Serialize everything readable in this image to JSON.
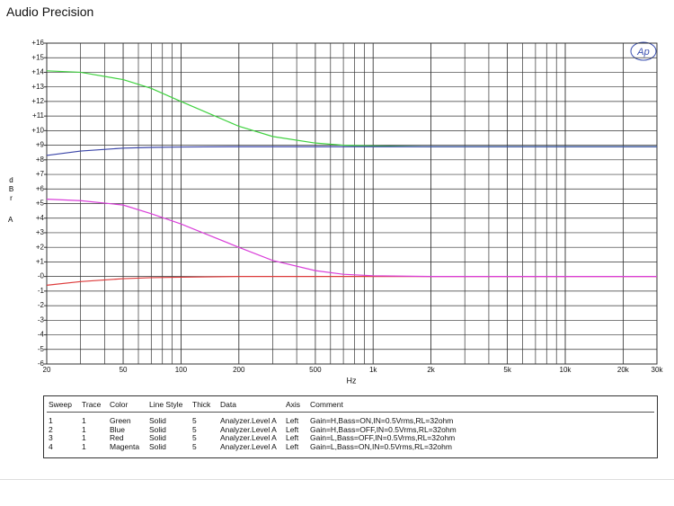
{
  "title": "Audio Precision",
  "logo": "Ap",
  "chart_data": {
    "type": "line",
    "xlabel": "Hz",
    "ylabel": "dBr",
    "ylabel2": "A",
    "log_x": true,
    "grid": true,
    "x": [
      20,
      30,
      50,
      70,
      100,
      200,
      300,
      500,
      700,
      1000,
      2000,
      5000,
      10000,
      20000,
      30000
    ],
    "series": [
      {
        "color": "#3fd13f",
        "values": [
          14.1,
          14.0,
          13.5,
          12.9,
          12.0,
          10.3,
          9.6,
          9.15,
          9.0,
          8.95,
          8.9,
          8.9,
          8.9,
          8.9,
          8.9
        ]
      },
      {
        "color": "#3a45a8",
        "values": [
          8.3,
          8.6,
          8.8,
          8.85,
          8.88,
          8.9,
          8.9,
          8.9,
          8.9,
          8.9,
          8.9,
          8.9,
          8.9,
          8.9,
          8.9
        ]
      },
      {
        "color": "#dd3b3b",
        "values": [
          -0.6,
          -0.35,
          -0.15,
          -0.08,
          -0.05,
          0,
          0,
          0,
          0,
          0,
          0,
          0,
          0,
          0,
          0
        ]
      },
      {
        "color": "#d93fd9",
        "values": [
          5.3,
          5.2,
          4.9,
          4.3,
          3.6,
          2.0,
          1.1,
          0.4,
          0.15,
          0.05,
          0,
          0,
          0,
          0,
          0
        ]
      }
    ],
    "xlim": [
      20,
      30000
    ],
    "ylim": [
      -6,
      16
    ],
    "xticks": [
      20,
      50,
      100,
      200,
      500,
      {
        "value": 1000,
        "label": "1k"
      },
      {
        "value": 2000,
        "label": "2k"
      },
      {
        "value": 5000,
        "label": "5k"
      },
      {
        "value": 10000,
        "label": "10k"
      },
      {
        "value": 20000,
        "label": "20k"
      },
      {
        "value": 30000,
        "label": "30k"
      }
    ],
    "yticks": [
      {
        "value": 16,
        "label": "+16"
      },
      {
        "value": 15,
        "label": "+15"
      },
      {
        "value": 14,
        "label": "+14"
      },
      {
        "value": 13,
        "label": "+13"
      },
      {
        "value": 12,
        "label": "+12"
      },
      {
        "value": 11,
        "label": "+11"
      },
      {
        "value": 10,
        "label": "+10"
      },
      {
        "value": 9,
        "label": "+9"
      },
      {
        "value": 8,
        "label": "+8"
      },
      {
        "value": 7,
        "label": "+7"
      },
      {
        "value": 6,
        "label": "+6"
      },
      {
        "value": 5,
        "label": "+5"
      },
      {
        "value": 4,
        "label": "+4"
      },
      {
        "value": 3,
        "label": "+3"
      },
      {
        "value": 2,
        "label": "+2"
      },
      {
        "value": 1,
        "label": "+1"
      },
      {
        "value": 0,
        "label": "-0"
      },
      -1,
      -2,
      -3,
      -4,
      -5,
      -6
    ]
  },
  "table": {
    "columns": [
      "Sweep",
      "Trace",
      "Color",
      "Line Style",
      "Thick",
      "Data",
      "Axis",
      "Comment"
    ],
    "rows": [
      [
        1,
        1,
        "Green",
        "Solid",
        5,
        "Analyzer.Level A",
        "Left",
        "Gain=H,Bass=ON,IN=0.5Vrms,RL=32ohm"
      ],
      [
        2,
        1,
        "Blue",
        "Solid",
        5,
        "Analyzer.Level A",
        "Left",
        "Gain=H,Bass=OFF,IN=0.5Vrms,RL=32ohm"
      ],
      [
        3,
        1,
        "Red",
        "Solid",
        5,
        "Analyzer.Level A",
        "Left",
        "Gain=L,Bass=OFF,IN=0.5Vrms,RL=32ohm"
      ],
      [
        4,
        1,
        "Magenta",
        "Solid",
        5,
        "Analyzer.Level A",
        "Left",
        "Gain=L,Bass=ON,IN=0.5Vrms,RL=32ohm"
      ]
    ]
  }
}
